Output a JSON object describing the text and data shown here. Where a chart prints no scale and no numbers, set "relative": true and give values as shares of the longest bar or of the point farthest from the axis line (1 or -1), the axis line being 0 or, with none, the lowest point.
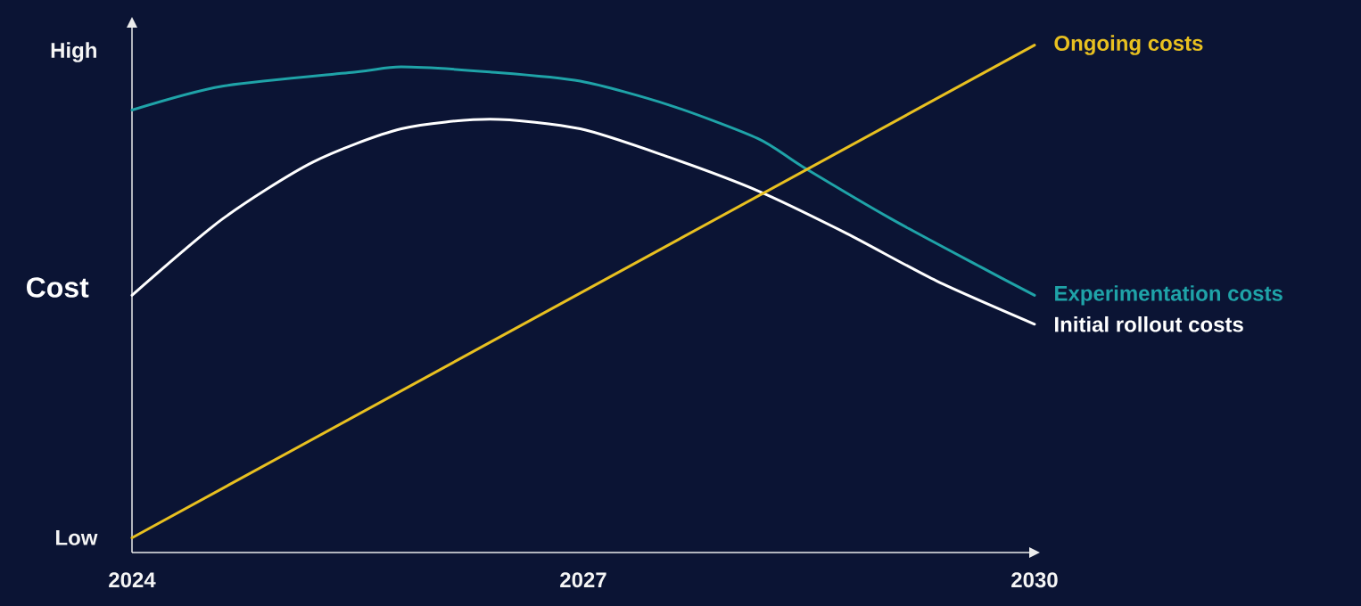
{
  "chart_data": {
    "type": "line",
    "relative": true,
    "ylabel": "Cost",
    "xlim": [
      2024,
      2030
    ],
    "xticks": [
      2024,
      2027,
      2030
    ],
    "annotations": [
      "High",
      "Low"
    ],
    "series": [
      {
        "name": "Experimentation costs",
        "color": "#1fa3a8",
        "x": [
          2024,
          2024.6,
          2025.49,
          2025.79,
          2026.38,
          2026.98,
          2027.57,
          2028.16,
          2028.46,
          2029.05,
          2029.64,
          2030
        ],
        "values": [
          0.872,
          0.919,
          0.947,
          0.957,
          0.947,
          0.929,
          0.882,
          0.816,
          0.76,
          0.657,
          0.563,
          0.507
        ]
      },
      {
        "name": "Initial rollout costs",
        "color": "#ffffff",
        "x": [
          2024,
          2024.6,
          2025.2,
          2025.79,
          2026.38,
          2026.98,
          2027.57,
          2028.16,
          2028.75,
          2029.35,
          2030
        ],
        "values": [
          0.507,
          0.657,
          0.769,
          0.835,
          0.854,
          0.835,
          0.779,
          0.713,
          0.629,
          0.535,
          0.45
        ]
      },
      {
        "name": "Ongoing costs",
        "color": "#e8c020",
        "x": [
          2024,
          2030
        ],
        "values": [
          0.029,
          1
        ]
      }
    ]
  }
}
